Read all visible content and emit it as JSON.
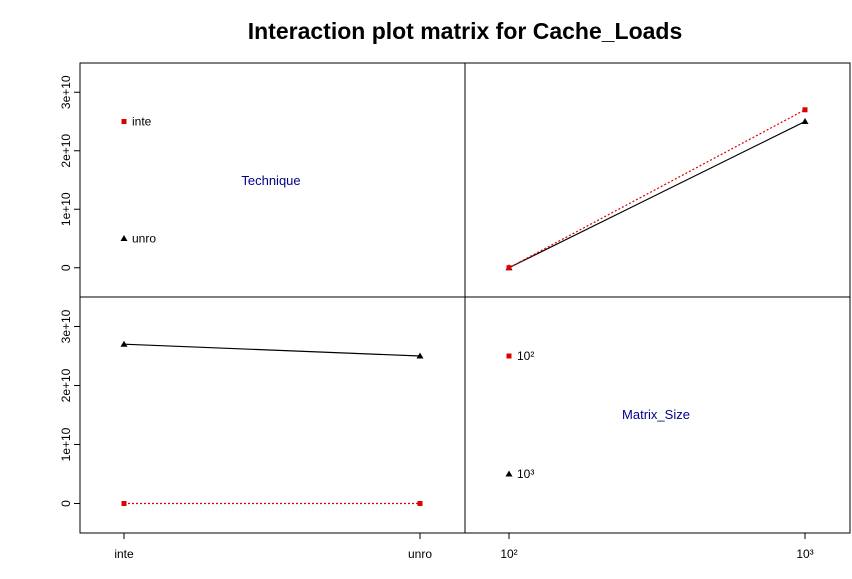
{
  "chart_data": {
    "type": "line",
    "title": "Interaction plot matrix for Cache_Loads",
    "factors": [
      {
        "name": "Technique",
        "levels": [
          "inte",
          "unro"
        ]
      },
      {
        "name": "Matrix_Size",
        "levels": [
          "10²",
          "10³"
        ]
      }
    ],
    "ylim": [
      -5000000000,
      35000000000
    ],
    "yticks": [
      0,
      10000000000,
      20000000000,
      30000000000
    ],
    "ytick_labels": [
      "0",
      "1e+10",
      "2e+10",
      "3e+10"
    ],
    "diagonal_label_color": "#00008B",
    "series_colors": [
      "#000000",
      "#DD0000"
    ],
    "panels": [
      {
        "position": "top-left",
        "kind": "legend",
        "factor": "Technique",
        "entries": [
          {
            "label": "inte",
            "y": 25000000000,
            "marker": "square",
            "color": "#DD0000"
          },
          {
            "label": "unro",
            "y": 5000000000,
            "marker": "triangle",
            "color": "#000000"
          }
        ]
      },
      {
        "position": "top-right",
        "kind": "interaction",
        "x_factor": "Matrix_Size",
        "trace_factor": "Technique",
        "x": [
          "10²",
          "10³"
        ],
        "series": [
          {
            "values": [
              0,
              25000000000
            ],
            "marker": "triangle",
            "color": "#000000",
            "line": "solid"
          },
          {
            "values": [
              0,
              27000000000
            ],
            "marker": "square",
            "color": "#DD0000",
            "line": "dotted"
          }
        ]
      },
      {
        "position": "bottom-left",
        "kind": "interaction",
        "x_factor": "Technique",
        "trace_factor": "Matrix_Size",
        "x": [
          "inte",
          "unro"
        ],
        "series": [
          {
            "values": [
              27000000000,
              25000000000
            ],
            "marker": "triangle",
            "color": "#000000",
            "line": "solid"
          },
          {
            "values": [
              0,
              0
            ],
            "marker": "square",
            "color": "#DD0000",
            "line": "dotted"
          }
        ]
      },
      {
        "position": "bottom-right",
        "kind": "legend",
        "factor": "Matrix_Size",
        "entries": [
          {
            "label": "10²",
            "y": 25000000000,
            "marker": "square",
            "color": "#DD0000"
          },
          {
            "label": "10³",
            "y": 5000000000,
            "marker": "triangle",
            "color": "#000000"
          }
        ]
      }
    ]
  }
}
